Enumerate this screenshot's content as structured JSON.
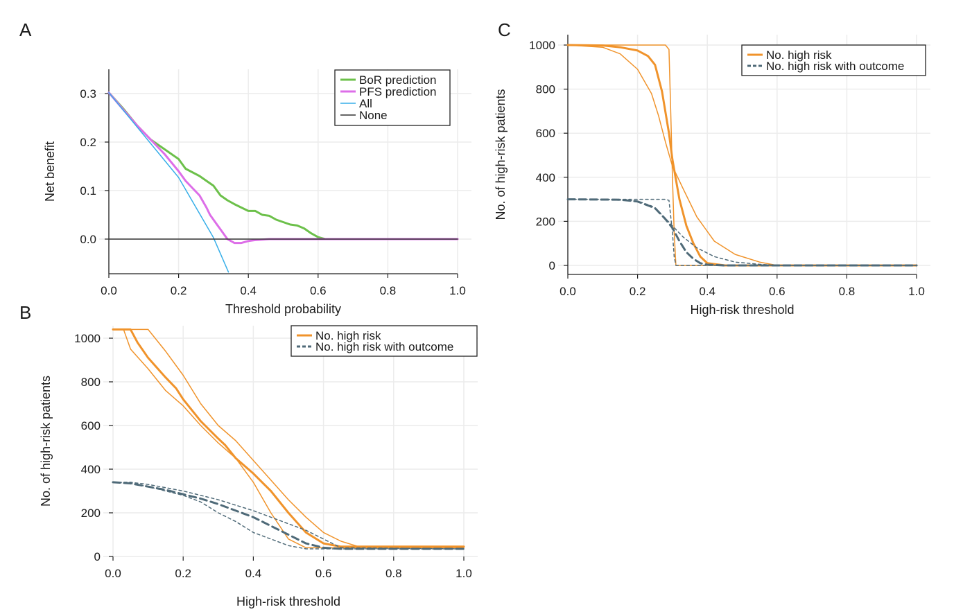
{
  "chart_data": [
    {
      "panel": "A",
      "type": "line",
      "xlabel": "Threshold probability",
      "ylabel": "Net benefit",
      "xlim": [
        0,
        1
      ],
      "ylim": [
        -0.065,
        0.35
      ],
      "xticks": [
        "0.0",
        "0.2",
        "0.4",
        "0.6",
        "0.8",
        "1.0"
      ],
      "xtick_values": [
        0,
        0.2,
        0.4,
        0.6,
        0.8,
        1.0
      ],
      "yticks": [
        "0.0",
        "0.1",
        "0.2",
        "0.3"
      ],
      "ytick_values": [
        0,
        0.1,
        0.2,
        0.3
      ],
      "grid": true,
      "legend_position": "top-right",
      "series": [
        {
          "name": "BoR prediction",
          "color": "#6cc04a",
          "width": 3,
          "dash": "",
          "x": [
            0,
            0.04,
            0.08,
            0.12,
            0.16,
            0.2,
            0.22,
            0.26,
            0.28,
            0.3,
            0.32,
            0.34,
            0.36,
            0.38,
            0.4,
            0.42,
            0.44,
            0.46,
            0.48,
            0.5,
            0.52,
            0.54,
            0.56,
            0.58,
            0.6,
            0.62,
            0.7,
            1.0
          ],
          "y": [
            0.302,
            0.27,
            0.235,
            0.205,
            0.185,
            0.165,
            0.145,
            0.13,
            0.12,
            0.11,
            0.09,
            0.08,
            0.072,
            0.065,
            0.058,
            0.058,
            0.05,
            0.048,
            0.04,
            0.035,
            0.03,
            0.028,
            0.022,
            0.012,
            0.004,
            0,
            0,
            0
          ]
        },
        {
          "name": "PFS prediction",
          "color": "#dd6ee8",
          "width": 3,
          "dash": "",
          "x": [
            0,
            0.04,
            0.08,
            0.12,
            0.16,
            0.2,
            0.22,
            0.24,
            0.26,
            0.28,
            0.29,
            0.3,
            0.31,
            0.32,
            0.33,
            0.34,
            0.36,
            0.38,
            0.4,
            0.42,
            0.46,
            1.0
          ],
          "y": [
            0.302,
            0.268,
            0.235,
            0.205,
            0.175,
            0.14,
            0.12,
            0.105,
            0.09,
            0.065,
            0.05,
            0.04,
            0.03,
            0.02,
            0.01,
            0.0,
            -0.008,
            -0.008,
            -0.004,
            -0.002,
            0,
            0
          ]
        },
        {
          "name": "All",
          "color": "#36aee8",
          "width": 1.5,
          "dash": "",
          "x": [
            0,
            0.2,
            0.3,
            0.343
          ],
          "y": [
            0.302,
            0.127,
            0.003,
            -0.068
          ]
        },
        {
          "name": "None",
          "color": "#333333",
          "width": 1.5,
          "dash": "",
          "x": [
            0,
            1.0
          ],
          "y": [
            0,
            0
          ]
        }
      ]
    },
    {
      "panel": "B",
      "type": "line",
      "xlabel": "High-risk threshold",
      "ylabel": "No. of high-risk patients",
      "xlim": [
        0,
        1
      ],
      "ylim": [
        0,
        1050
      ],
      "xticks": [
        "0.0",
        "0.2",
        "0.4",
        "0.6",
        "0.8",
        "1.0"
      ],
      "xtick_values": [
        0,
        0.2,
        0.4,
        0.6,
        0.8,
        1.0
      ],
      "yticks": [
        "0",
        "200",
        "400",
        "600",
        "800",
        "1000"
      ],
      "ytick_values": [
        0,
        200,
        400,
        600,
        800,
        1000
      ],
      "grid": true,
      "legend_position": "top-right",
      "series": [
        {
          "name": "No. high risk",
          "color": "#f0932b",
          "width": 3,
          "dash": "",
          "legend": true,
          "x": [
            0,
            0.05,
            0.07,
            0.1,
            0.15,
            0.18,
            0.2,
            0.25,
            0.3,
            0.32,
            0.35,
            0.4,
            0.45,
            0.5,
            0.55,
            0.6,
            0.65,
            0.7,
            1.0
          ],
          "y": [
            1040,
            1040,
            980,
            910,
            820,
            770,
            720,
            620,
            540,
            510,
            450,
            380,
            300,
            200,
            110,
            60,
            45,
            45,
            45
          ]
        },
        {
          "name": "No. high risk upper",
          "color": "#f0932b",
          "width": 1.5,
          "dash": "",
          "legend": false,
          "x": [
            0,
            0.1,
            0.15,
            0.2,
            0.25,
            0.3,
            0.35,
            0.4,
            0.45,
            0.5,
            0.55,
            0.6,
            0.65,
            0.7,
            1.0
          ],
          "y": [
            1040,
            1040,
            940,
            830,
            700,
            600,
            530,
            440,
            350,
            260,
            180,
            110,
            70,
            45,
            45
          ]
        },
        {
          "name": "No. high risk lower",
          "color": "#f0932b",
          "width": 1.5,
          "dash": "",
          "legend": false,
          "x": [
            0,
            0.03,
            0.05,
            0.1,
            0.15,
            0.2,
            0.25,
            0.3,
            0.35,
            0.4,
            0.45,
            0.5,
            0.55,
            0.6,
            1.0
          ],
          "y": [
            1040,
            1040,
            950,
            860,
            760,
            690,
            600,
            520,
            450,
            340,
            200,
            80,
            40,
            40,
            40
          ]
        },
        {
          "name": "No. high risk with outcome",
          "color": "#4f6a78",
          "width": 3,
          "dash": "10,6",
          "legend": true,
          "x": [
            0,
            0.05,
            0.1,
            0.15,
            0.2,
            0.25,
            0.3,
            0.35,
            0.4,
            0.45,
            0.5,
            0.55,
            0.6,
            0.65,
            1.0
          ],
          "y": [
            340,
            335,
            320,
            305,
            285,
            265,
            240,
            210,
            180,
            140,
            100,
            60,
            40,
            35,
            35
          ]
        },
        {
          "name": "No. high risk with outcome upper",
          "color": "#4f6a78",
          "width": 1.5,
          "dash": "4,4",
          "legend": false,
          "x": [
            0,
            0.05,
            0.1,
            0.2,
            0.3,
            0.4,
            0.45,
            0.5,
            0.55,
            0.6,
            0.65,
            1.0
          ],
          "y": [
            340,
            340,
            330,
            300,
            260,
            210,
            180,
            150,
            120,
            80,
            40,
            35
          ]
        },
        {
          "name": "No. high risk with outcome lower",
          "color": "#4f6a78",
          "width": 1.5,
          "dash": "4,4",
          "legend": false,
          "x": [
            0,
            0.05,
            0.1,
            0.2,
            0.25,
            0.3,
            0.35,
            0.4,
            0.45,
            0.5,
            0.55,
            1.0
          ],
          "y": [
            340,
            335,
            320,
            280,
            250,
            200,
            160,
            110,
            80,
            50,
            35,
            35
          ]
        }
      ],
      "legend": [
        "No. high risk",
        "No. high risk with outcome"
      ]
    },
    {
      "panel": "C",
      "type": "line",
      "xlabel": "High-risk threshold",
      "ylabel": "No. of high-risk patients",
      "xlim": [
        0,
        1
      ],
      "ylim": [
        -40,
        1010
      ],
      "xticks": [
        "0.0",
        "0.2",
        "0.4",
        "0.6",
        "0.8",
        "1.0"
      ],
      "xtick_values": [
        0,
        0.2,
        0.4,
        0.6,
        0.8,
        1.0
      ],
      "yticks": [
        "0",
        "200",
        "400",
        "600",
        "800",
        "1000"
      ],
      "ytick_values": [
        0,
        200,
        400,
        600,
        800,
        1000
      ],
      "grid": true,
      "legend_position": "top-right",
      "series": [
        {
          "name": "No. high risk",
          "color": "#f0932b",
          "width": 3,
          "dash": "",
          "legend": true,
          "x": [
            0,
            0.1,
            0.15,
            0.2,
            0.23,
            0.25,
            0.27,
            0.29,
            0.3,
            0.31,
            0.32,
            0.34,
            0.36,
            0.38,
            0.4,
            0.45,
            0.5,
            1.0
          ],
          "y": [
            1000,
            998,
            990,
            975,
            950,
            910,
            790,
            600,
            480,
            390,
            300,
            180,
            100,
            40,
            10,
            0,
            0,
            0
          ]
        },
        {
          "name": "No. high risk steep",
          "color": "#f0932b",
          "width": 1.5,
          "dash": "",
          "legend": false,
          "x": [
            0,
            0.28,
            0.29,
            0.295,
            0.3,
            0.305,
            0.31,
            1.0
          ],
          "y": [
            1000,
            1000,
            980,
            700,
            400,
            150,
            0,
            0
          ]
        },
        {
          "name": "No. high risk gradual",
          "color": "#f0932b",
          "width": 1.5,
          "dash": "",
          "legend": false,
          "x": [
            0,
            0.1,
            0.15,
            0.2,
            0.24,
            0.26,
            0.28,
            0.3,
            0.33,
            0.37,
            0.42,
            0.48,
            0.55,
            0.6,
            1.0
          ],
          "y": [
            1000,
            990,
            960,
            890,
            780,
            680,
            560,
            450,
            350,
            220,
            110,
            50,
            15,
            0,
            0
          ]
        },
        {
          "name": "No. high risk with outcome",
          "color": "#4f6a78",
          "width": 3,
          "dash": "10,6",
          "legend": true,
          "x": [
            0,
            0.15,
            0.2,
            0.25,
            0.28,
            0.3,
            0.32,
            0.34,
            0.36,
            0.38,
            0.4,
            0.45,
            0.5,
            1.0
          ],
          "y": [
            300,
            298,
            290,
            260,
            210,
            170,
            110,
            60,
            30,
            10,
            3,
            0,
            0,
            0
          ]
        },
        {
          "name": "No. high risk with outcome steep",
          "color": "#4f6a78",
          "width": 1.5,
          "dash": "4,4",
          "legend": false,
          "x": [
            0,
            0.28,
            0.29,
            0.3,
            0.305,
            0.31,
            1.0
          ],
          "y": [
            300,
            300,
            295,
            150,
            40,
            0,
            0
          ]
        },
        {
          "name": "No. high risk with outcome gradual",
          "color": "#4f6a78",
          "width": 1.5,
          "dash": "4,4",
          "legend": false,
          "x": [
            0,
            0.1,
            0.2,
            0.24,
            0.27,
            0.3,
            0.33,
            0.37,
            0.42,
            0.48,
            0.55,
            0.6,
            1.0
          ],
          "y": [
            300,
            300,
            292,
            270,
            230,
            180,
            130,
            80,
            40,
            15,
            5,
            0,
            0
          ]
        }
      ],
      "legend": [
        "No. high risk",
        "No. high risk with outcome"
      ]
    }
  ]
}
